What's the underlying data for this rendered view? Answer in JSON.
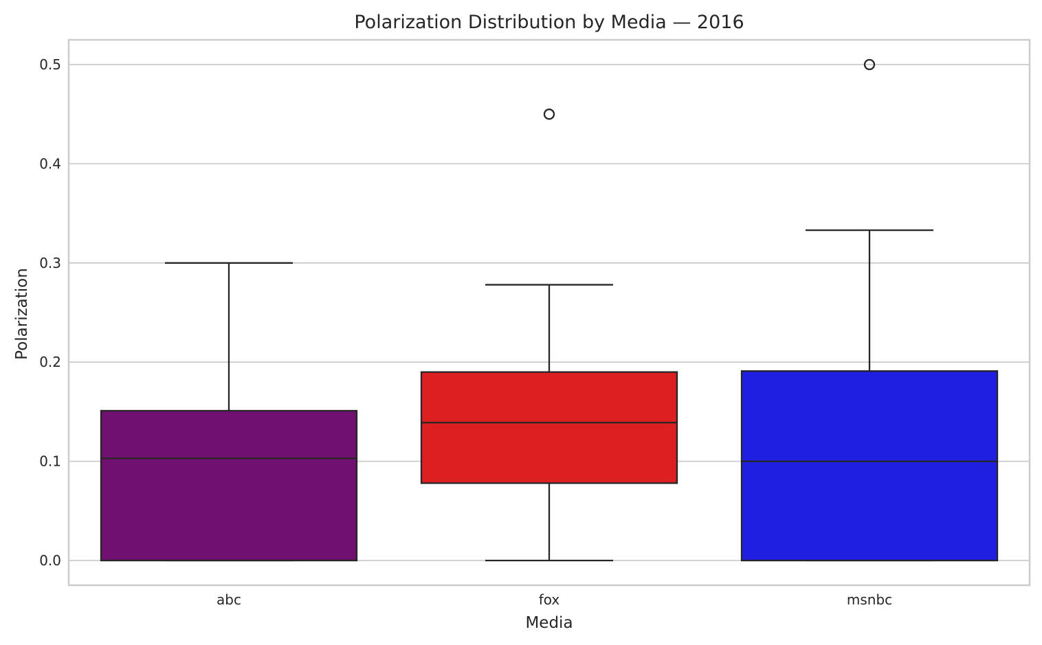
{
  "chart_data": {
    "type": "box",
    "title": "Polarization Distribution by Media — 2016",
    "xlabel": "Media",
    "ylabel": "Polarization",
    "ylim": [
      -0.025,
      0.525
    ],
    "yticks": [
      0.0,
      0.1,
      0.2,
      0.3,
      0.4,
      0.5
    ],
    "ytick_labels": [
      "0.0",
      "0.1",
      "0.2",
      "0.3",
      "0.4",
      "0.5"
    ],
    "grid": "horizontal",
    "legend": "none",
    "categories": [
      "abc",
      "fox",
      "msnbc"
    ],
    "boxes": [
      {
        "category": "abc",
        "whisker_low": 0.0,
        "q1": 0.0,
        "median": 0.103,
        "q3": 0.151,
        "whisker_high": 0.3,
        "outliers": [],
        "color": "#701070"
      },
      {
        "category": "fox",
        "whisker_low": 0.0,
        "q1": 0.078,
        "median": 0.139,
        "q3": 0.19,
        "whisker_high": 0.278,
        "outliers": [
          0.45
        ],
        "color": "#de1f22"
      },
      {
        "category": "msnbc",
        "whisker_low": 0.0,
        "q1": 0.0,
        "median": 0.1,
        "q3": 0.191,
        "whisker_high": 0.333,
        "outliers": [
          0.5
        ],
        "color": "#1f1fe1"
      }
    ],
    "colors": {
      "grid": "#cccccc",
      "frame": "#cccccc",
      "box_edge": "#262626",
      "text": "#262626"
    }
  }
}
